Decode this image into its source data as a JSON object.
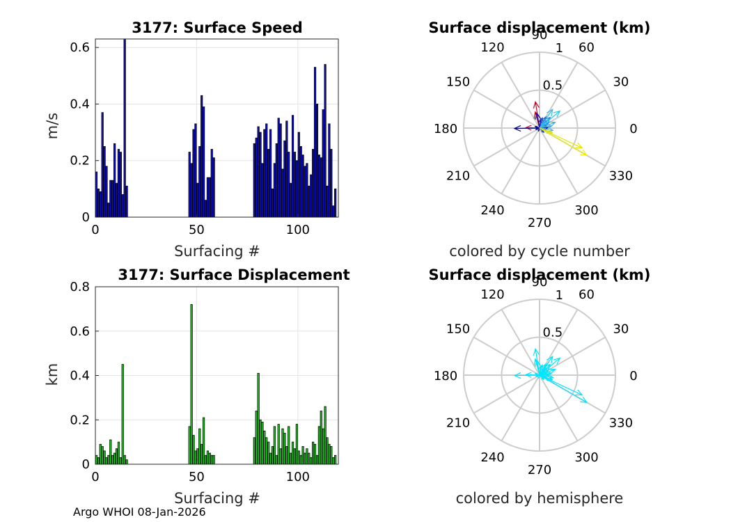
{
  "footer": "Argo WHOI 08-Jan-2026",
  "chart_data": [
    {
      "id": "speed",
      "type": "bar",
      "title": "3177: Surface Speed",
      "xlabel": "Surfacing #",
      "ylabel": "m/s",
      "xlim": [
        0,
        120
      ],
      "ylim": [
        0,
        0.63
      ],
      "xticks": [
        0,
        50,
        100
      ],
      "yticks": [
        0,
        0.2,
        0.4,
        0.6
      ],
      "ytick_labels": [
        "0",
        "0.2",
        "0.4",
        "0.6"
      ],
      "bar_color": "#0d0dc8",
      "x": [
        0,
        1,
        2,
        3,
        4,
        5,
        6,
        7,
        8,
        9,
        10,
        11,
        12,
        13,
        14,
        15,
        46,
        47,
        48,
        49,
        50,
        51,
        52,
        53,
        54,
        55,
        56,
        57,
        58,
        78,
        79,
        80,
        81,
        82,
        83,
        84,
        85,
        86,
        87,
        88,
        89,
        90,
        91,
        92,
        93,
        94,
        95,
        96,
        97,
        98,
        99,
        100,
        101,
        102,
        103,
        104,
        105,
        106,
        107,
        108,
        109,
        110,
        111,
        112,
        113,
        114,
        115,
        116,
        117,
        118
      ],
      "values": [
        0.16,
        0.1,
        0.09,
        0.37,
        0.25,
        0.18,
        0.05,
        0.13,
        0.13,
        0.26,
        0.12,
        0.24,
        0.23,
        0.08,
        0.63,
        0.11,
        0.23,
        0.19,
        0.31,
        0.33,
        0.12,
        0.25,
        0.43,
        0.39,
        0.06,
        0.14,
        0.14,
        0.24,
        0.21,
        0.26,
        0.28,
        0.32,
        0.3,
        0.19,
        0.31,
        0.33,
        0.24,
        0.31,
        0.1,
        0.19,
        0.26,
        0.35,
        0.33,
        0.17,
        0.27,
        0.34,
        0.23,
        0.12,
        0.36,
        0.23,
        0.2,
        0.3,
        0.25,
        0.22,
        0.18,
        0.19,
        0.11,
        0.15,
        0.24,
        0.53,
        0.4,
        0.22,
        0.21,
        0.38,
        0.54,
        0.11,
        0.33,
        0.24,
        0.04,
        0.1
      ]
    },
    {
      "id": "displacement",
      "type": "bar",
      "title": "3177: Surface Displacement",
      "xlabel": "Surfacing #",
      "ylabel": "km",
      "xlim": [
        0,
        120
      ],
      "ylim": [
        0,
        0.8
      ],
      "xticks": [
        0,
        50,
        100
      ],
      "yticks": [
        0,
        0.2,
        0.4,
        0.6,
        0.8
      ],
      "ytick_labels": [
        "0",
        "0.2",
        "0.4",
        "0.6",
        "0.8"
      ],
      "bar_color": "#19d219",
      "x": [
        0,
        1,
        2,
        3,
        4,
        5,
        6,
        7,
        8,
        9,
        10,
        11,
        12,
        13,
        14,
        15,
        46,
        47,
        48,
        49,
        50,
        51,
        52,
        53,
        54,
        55,
        56,
        57,
        58,
        78,
        79,
        80,
        81,
        82,
        83,
        84,
        85,
        86,
        87,
        88,
        89,
        90,
        91,
        92,
        93,
        94,
        95,
        96,
        97,
        98,
        99,
        100,
        101,
        102,
        103,
        104,
        105,
        106,
        107,
        108,
        109,
        110,
        111,
        112,
        113,
        114,
        115,
        116,
        117,
        118
      ],
      "values": [
        0.04,
        0.03,
        0.09,
        0.08,
        0.06,
        0.03,
        0.04,
        0.11,
        0.04,
        0.05,
        0.07,
        0.1,
        0.03,
        0.45,
        0.04,
        0.02,
        0.17,
        0.72,
        0.13,
        0.06,
        0.07,
        0.16,
        0.09,
        0.21,
        0.04,
        0.06,
        0.05,
        0.04,
        0.04,
        0.12,
        0.24,
        0.41,
        0.2,
        0.19,
        0.15,
        0.12,
        0.1,
        0.05,
        0.08,
        0.17,
        0.04,
        0.18,
        0.07,
        0.16,
        0.14,
        0.08,
        0.17,
        0.05,
        0.1,
        0.07,
        0.18,
        0.06,
        0.04,
        0.08,
        0.05,
        0.07,
        0.05,
        0.03,
        0.1,
        0.09,
        0.04,
        0.17,
        0.24,
        0.16,
        0.26,
        0.12,
        0.09,
        0.08,
        0.03,
        0.04
      ]
    },
    {
      "id": "polar-cycle",
      "type": "polar",
      "title": "Surface displacement (km)",
      "caption": "colored by cycle number",
      "rmax": 1,
      "radial_ticks": [
        {
          "r": 0.5,
          "label": "0.5"
        },
        {
          "r": 1,
          "label": "1"
        }
      ],
      "angle_ticks": [
        0,
        30,
        60,
        90,
        120,
        150,
        180,
        210,
        240,
        270,
        300,
        330
      ],
      "angle_labels": [
        "0",
        "30",
        "60",
        "90",
        "120",
        "150",
        "180",
        "210",
        "240",
        "270",
        "300",
        "330"
      ],
      "arrows": [
        {
          "angle_deg": 99,
          "r": 0.35,
          "color": "#c8001e"
        },
        {
          "angle_deg": 105,
          "r": 0.22,
          "color": "#c8001e"
        },
        {
          "angle_deg": 178,
          "r": 0.18,
          "color": "#d20a3c"
        },
        {
          "angle_deg": 181,
          "r": 0.33,
          "color": "#000080"
        },
        {
          "angle_deg": 82,
          "r": 0.12,
          "color": "#00008c"
        },
        {
          "angle_deg": 100,
          "r": 0.2,
          "color": "#0a1496"
        },
        {
          "angle_deg": 160,
          "r": 0.06,
          "color": "#0000a0"
        },
        {
          "angle_deg": 200,
          "r": 0.05,
          "color": "#000090"
        },
        {
          "angle_deg": 250,
          "r": 0.04,
          "color": "#0000a0"
        },
        {
          "angle_deg": 20,
          "r": 0.1,
          "color": "#0a0ab4"
        },
        {
          "angle_deg": 5,
          "r": 0.12,
          "color": "#0000c8"
        },
        {
          "angle_deg": 75,
          "r": 0.14,
          "color": "#1e3cd2"
        },
        {
          "angle_deg": 60,
          "r": 0.17,
          "color": "#1464dc"
        },
        {
          "angle_deg": 45,
          "r": 0.2,
          "color": "#1e8cdc"
        },
        {
          "angle_deg": 30,
          "r": 0.14,
          "color": "#2896e6"
        },
        {
          "angle_deg": 50,
          "r": 0.12,
          "color": "#32a0e6"
        },
        {
          "angle_deg": 40,
          "r": 0.35,
          "color": "#28c8e6"
        },
        {
          "angle_deg": 55,
          "r": 0.3,
          "color": "#32beeb"
        },
        {
          "angle_deg": 20,
          "r": 0.22,
          "color": "#3cb4d2"
        },
        {
          "angle_deg": 10,
          "r": 0.16,
          "color": "#46aadc"
        },
        {
          "angle_deg": 350,
          "r": 0.18,
          "color": "#50b4e6"
        },
        {
          "angle_deg": 340,
          "r": 0.1,
          "color": "#3c8cdc"
        },
        {
          "angle_deg": 315,
          "r": 0.08,
          "color": "#1e50c8"
        },
        {
          "angle_deg": 330,
          "r": 0.72,
          "color": "#f0f000"
        },
        {
          "angle_deg": 335,
          "r": 0.62,
          "color": "#e6e600"
        },
        {
          "angle_deg": 340,
          "r": 0.18,
          "color": "#e1e10a"
        }
      ]
    },
    {
      "id": "polar-hemisphere",
      "type": "polar",
      "title": "Surface displacement (km)",
      "caption": "colored by hemisphere",
      "rmax": 1,
      "radial_ticks": [
        {
          "r": 0.5,
          "label": "0.5"
        },
        {
          "r": 1,
          "label": "1"
        }
      ],
      "angle_ticks": [
        0,
        30,
        60,
        90,
        120,
        150,
        180,
        210,
        240,
        270,
        300,
        330
      ],
      "angle_labels": [
        "0",
        "30",
        "60",
        "90",
        "120",
        "150",
        "180",
        "210",
        "240",
        "270",
        "300",
        "330"
      ],
      "arrows": [
        {
          "angle_deg": 99,
          "r": 0.35,
          "color": "#00e6ff"
        },
        {
          "angle_deg": 105,
          "r": 0.22,
          "color": "#00e6ff"
        },
        {
          "angle_deg": 178,
          "r": 0.18,
          "color": "#00e6ff"
        },
        {
          "angle_deg": 181,
          "r": 0.33,
          "color": "#00e6ff"
        },
        {
          "angle_deg": 82,
          "r": 0.12,
          "color": "#00e6ff"
        },
        {
          "angle_deg": 100,
          "r": 0.2,
          "color": "#00e6ff"
        },
        {
          "angle_deg": 160,
          "r": 0.06,
          "color": "#00e6ff"
        },
        {
          "angle_deg": 200,
          "r": 0.05,
          "color": "#00e6ff"
        },
        {
          "angle_deg": 250,
          "r": 0.04,
          "color": "#00e6ff"
        },
        {
          "angle_deg": 20,
          "r": 0.1,
          "color": "#00e6ff"
        },
        {
          "angle_deg": 5,
          "r": 0.12,
          "color": "#00e6ff"
        },
        {
          "angle_deg": 75,
          "r": 0.14,
          "color": "#00e6ff"
        },
        {
          "angle_deg": 60,
          "r": 0.17,
          "color": "#00e6ff"
        },
        {
          "angle_deg": 45,
          "r": 0.2,
          "color": "#00e6ff"
        },
        {
          "angle_deg": 30,
          "r": 0.14,
          "color": "#00e6ff"
        },
        {
          "angle_deg": 50,
          "r": 0.12,
          "color": "#00e6ff"
        },
        {
          "angle_deg": 40,
          "r": 0.35,
          "color": "#00e6ff"
        },
        {
          "angle_deg": 55,
          "r": 0.3,
          "color": "#00e6ff"
        },
        {
          "angle_deg": 20,
          "r": 0.22,
          "color": "#00e6ff"
        },
        {
          "angle_deg": 10,
          "r": 0.16,
          "color": "#00e6ff"
        },
        {
          "angle_deg": 350,
          "r": 0.18,
          "color": "#00e6ff"
        },
        {
          "angle_deg": 340,
          "r": 0.1,
          "color": "#00e6ff"
        },
        {
          "angle_deg": 315,
          "r": 0.08,
          "color": "#00e6ff"
        },
        {
          "angle_deg": 330,
          "r": 0.72,
          "color": "#00e6ff"
        },
        {
          "angle_deg": 335,
          "r": 0.62,
          "color": "#00e6ff"
        },
        {
          "angle_deg": 340,
          "r": 0.18,
          "color": "#00e6ff"
        }
      ]
    }
  ]
}
